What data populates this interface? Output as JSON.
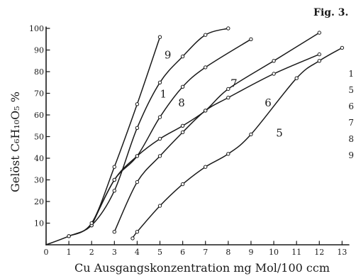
{
  "chart_data": {
    "type": "line",
    "figure_label": "Fig. 3.",
    "xlabel": "Cu Ausgangskonzentration mg Mol/100 ccm",
    "ylabel": "Gelöst C₆H₁₀O₅ %",
    "xlim": [
      0,
      13.3
    ],
    "ylim": [
      0,
      100
    ],
    "x_ticks": [
      0,
      1,
      2,
      3,
      4,
      5,
      6,
      7,
      8,
      9,
      10,
      11,
      12,
      13
    ],
    "x_tick_labels": [
      "0",
      "1",
      "2",
      "3",
      "4",
      "5",
      "6",
      "7",
      "8",
      "9",
      "10",
      "11",
      "12",
      "13"
    ],
    "y_ticks": [
      10,
      20,
      30,
      40,
      50,
      60,
      70,
      80,
      90,
      100
    ],
    "y_tick_labels": [
      "10",
      "20",
      "30",
      "40",
      "50",
      "60",
      "70",
      "80",
      "90",
      "100"
    ],
    "grid": false,
    "series": [
      {
        "name": "1",
        "x": [
          0,
          1,
          2,
          3,
          4,
          5,
          6,
          7,
          8
        ],
        "y": [
          0,
          4,
          9,
          25,
          54,
          75,
          87,
          97,
          100
        ]
      },
      {
        "name": "5",
        "x": [
          3.8,
          4,
          5,
          6,
          7,
          8,
          9,
          11,
          12,
          13
        ],
        "y": [
          3,
          6,
          18,
          28,
          36,
          42,
          51,
          77,
          85,
          91
        ]
      },
      {
        "name": "6",
        "x": [
          3,
          4,
          5,
          6,
          7,
          8,
          10,
          12
        ],
        "y": [
          6,
          29,
          41,
          52,
          62,
          68,
          79,
          88
        ]
      },
      {
        "name": "7",
        "x": [
          2,
          3,
          4,
          5,
          6,
          7,
          8,
          10,
          12
        ],
        "y": [
          9,
          30,
          41,
          49,
          55,
          62,
          72,
          85,
          98
        ]
      },
      {
        "name": "8",
        "x": [
          2,
          3,
          4,
          5,
          6,
          7,
          9
        ],
        "y": [
          9,
          30,
          41,
          59,
          73,
          82,
          95
        ]
      },
      {
        "name": "9",
        "x": [
          1,
          2,
          3,
          4,
          5
        ],
        "y": [
          4,
          10,
          36,
          65,
          96
        ]
      }
    ],
    "curve_labels": [
      {
        "text": "9",
        "x": 5.2,
        "y": 86
      },
      {
        "text": "1",
        "x": 5.0,
        "y": 68
      },
      {
        "text": "8",
        "x": 5.8,
        "y": 64
      },
      {
        "text": "7",
        "x": 8.1,
        "y": 73
      },
      {
        "text": "6",
        "x": 9.6,
        "y": 64
      },
      {
        "text": "5",
        "x": 10.1,
        "y": 50
      }
    ],
    "side_digits": [
      "1",
      "5",
      "6",
      "7",
      "8",
      "9"
    ]
  }
}
